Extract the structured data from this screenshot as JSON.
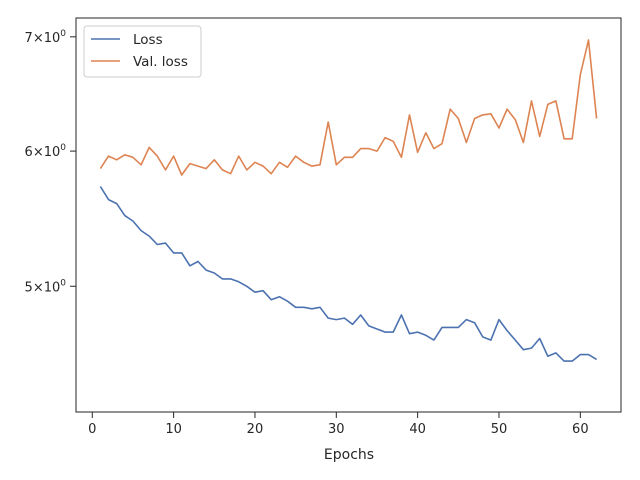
{
  "chart_data": {
    "type": "line",
    "title": "",
    "xlabel": "Epochs",
    "ylabel": "",
    "y_scale": "log",
    "xlim": [
      -2,
      65
    ],
    "ylim": [
      4.22,
      7.18
    ],
    "grid": false,
    "legend_position": "top-left",
    "x_ticks": [
      {
        "value": 0,
        "label": "0"
      },
      {
        "value": 10,
        "label": "10"
      },
      {
        "value": 20,
        "label": "20"
      },
      {
        "value": 30,
        "label": "30"
      },
      {
        "value": 40,
        "label": "40"
      },
      {
        "value": 50,
        "label": "50"
      },
      {
        "value": 60,
        "label": "60"
      }
    ],
    "y_ticks": [
      {
        "value": 5,
        "base": "5",
        "exp": "0"
      },
      {
        "value": 6,
        "base": "6",
        "exp": "0"
      },
      {
        "value": 7,
        "base": "7",
        "exp": "0"
      }
    ],
    "x": [
      1,
      2,
      3,
      4,
      5,
      6,
      7,
      8,
      9,
      10,
      11,
      12,
      13,
      14,
      15,
      16,
      17,
      18,
      19,
      20,
      21,
      22,
      23,
      24,
      25,
      26,
      27,
      28,
      29,
      30,
      31,
      32,
      33,
      34,
      35,
      36,
      37,
      38,
      39,
      40,
      41,
      42,
      43,
      44,
      45,
      46,
      47,
      48,
      49,
      50,
      51,
      52,
      53,
      54,
      55,
      56,
      57,
      58,
      59,
      60,
      61,
      62
    ],
    "series": [
      {
        "name": "Loss",
        "color": "#4c72b0",
        "values": [
          5.72,
          5.62,
          5.59,
          5.5,
          5.46,
          5.39,
          5.35,
          5.29,
          5.3,
          5.23,
          5.23,
          5.14,
          5.17,
          5.11,
          5.09,
          5.05,
          5.05,
          5.03,
          5.0,
          4.96,
          4.97,
          4.91,
          4.93,
          4.9,
          4.86,
          4.86,
          4.85,
          4.86,
          4.79,
          4.78,
          4.79,
          4.75,
          4.81,
          4.74,
          4.72,
          4.7,
          4.7,
          4.81,
          4.69,
          4.7,
          4.68,
          4.65,
          4.73,
          4.73,
          4.73,
          4.78,
          4.76,
          4.67,
          4.65,
          4.78,
          4.71,
          4.65,
          4.59,
          4.6,
          4.66,
          4.55,
          4.57,
          4.52,
          4.52,
          4.56,
          4.56,
          4.53
        ]
      },
      {
        "name": "Val. loss",
        "color": "#dd8452",
        "values": [
          5.86,
          5.96,
          5.93,
          5.97,
          5.95,
          5.89,
          6.03,
          5.96,
          5.85,
          5.96,
          5.81,
          5.9,
          5.88,
          5.86,
          5.93,
          5.85,
          5.82,
          5.96,
          5.85,
          5.91,
          5.88,
          5.82,
          5.91,
          5.87,
          5.96,
          5.91,
          5.88,
          5.89,
          6.24,
          5.89,
          5.95,
          5.95,
          6.02,
          6.02,
          6.0,
          6.11,
          6.08,
          5.95,
          6.3,
          5.99,
          6.15,
          6.02,
          6.06,
          6.35,
          6.27,
          6.07,
          6.27,
          6.3,
          6.31,
          6.19,
          6.35,
          6.26,
          6.07,
          6.42,
          6.12,
          6.39,
          6.42,
          6.1,
          6.1,
          6.65,
          6.97,
          6.27
        ]
      }
    ]
  }
}
